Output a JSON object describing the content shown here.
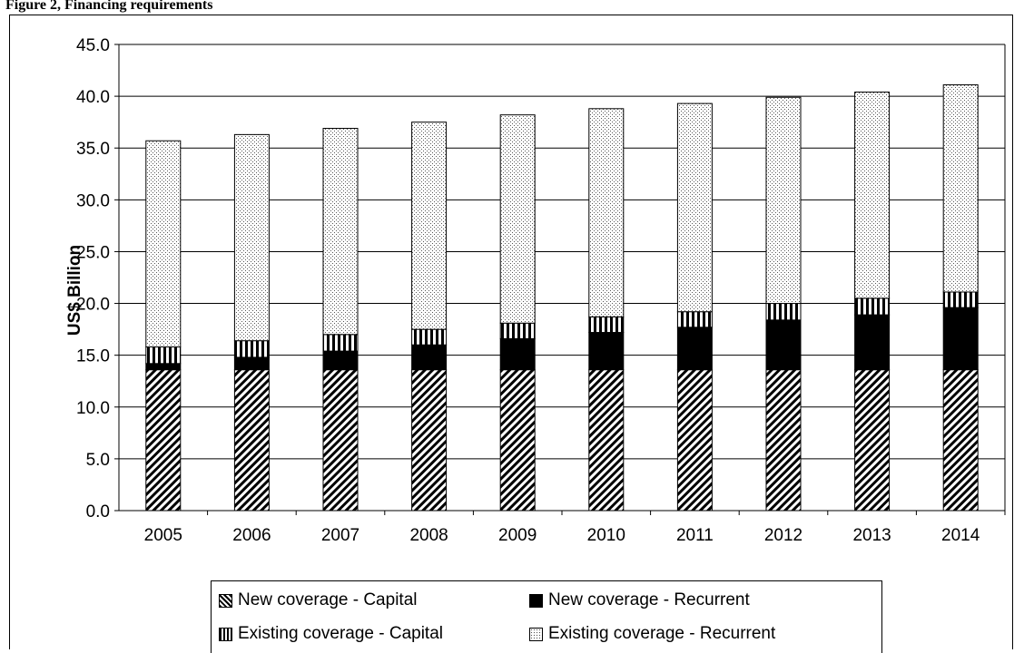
{
  "header": {
    "title": "Figure 2, Financing requirements"
  },
  "chart_data": {
    "type": "bar",
    "stacked": true,
    "categories": [
      "2005",
      "2006",
      "2007",
      "2008",
      "2009",
      "2010",
      "2011",
      "2012",
      "2013",
      "2014"
    ],
    "series": [
      {
        "name": "New coverage - Capital",
        "pattern": "diagonal-hatch",
        "values": [
          13.6,
          13.6,
          13.6,
          13.6,
          13.6,
          13.6,
          13.6,
          13.6,
          13.6,
          13.6
        ]
      },
      {
        "name": "New coverage - Recurrent",
        "pattern": "solid-black",
        "values": [
          0.6,
          1.2,
          1.8,
          2.4,
          3.0,
          3.6,
          4.1,
          4.8,
          5.3,
          6.0
        ]
      },
      {
        "name": "Existing coverage - Capital",
        "pattern": "vertical-stripes",
        "values": [
          1.6,
          1.6,
          1.6,
          1.5,
          1.5,
          1.5,
          1.5,
          1.6,
          1.6,
          1.5
        ]
      },
      {
        "name": "Existing coverage - Recurrent",
        "pattern": "dots",
        "values": [
          19.9,
          19.9,
          19.9,
          20.0,
          20.1,
          20.1,
          20.1,
          19.9,
          19.9,
          20.0
        ]
      }
    ],
    "ylabel": "US$ Billion",
    "xlabel": "",
    "ylim": [
      0,
      45
    ],
    "ytick_step": 5,
    "ytick_labels": [
      "0.0",
      "5.0",
      "10.0",
      "15.0",
      "20.0",
      "25.0",
      "30.0",
      "35.0",
      "40.0",
      "45.0"
    ],
    "grid": true,
    "legend_position": "bottom",
    "colors": {
      "bar_stroke": "#000000",
      "grid": "#000000",
      "background": "#ffffff"
    }
  }
}
